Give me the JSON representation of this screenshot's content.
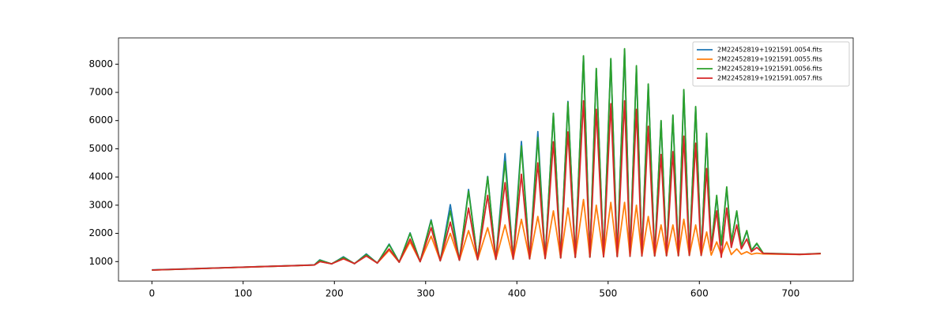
{
  "chart_data": {
    "type": "line",
    "x": [
      0,
      40,
      80,
      120,
      160,
      178,
      184,
      197,
      210,
      222,
      235,
      247,
      260,
      271,
      283,
      294,
      306,
      316,
      327,
      337,
      347,
      357,
      368,
      377,
      387,
      396,
      405,
      414,
      423,
      431,
      440,
      448,
      456,
      464,
      473,
      480,
      487,
      495,
      503,
      510,
      518,
      524,
      531,
      537,
      544,
      551,
      558,
      564,
      571,
      577,
      583,
      589,
      596,
      602,
      608,
      613,
      619,
      624,
      630,
      635,
      641,
      646,
      652,
      657,
      663,
      670,
      690,
      710,
      733
    ],
    "series": [
      {
        "name": "2M22452819+1921591.0054.fits",
        "color": "#1f77b4",
        "values": [
          705,
          745,
          785,
          825,
          865,
          885,
          1060,
          915,
          1170,
          925,
          1270,
          945,
          1620,
          975,
          2020,
          995,
          2480,
          1025,
          3020,
          1045,
          3560,
          1065,
          4020,
          1075,
          4830,
          1085,
          5260,
          1095,
          5610,
          1105,
          6260,
          1125,
          6680,
          1145,
          8280,
          1155,
          7820,
          1165,
          8180,
          1175,
          8520,
          1185,
          7900,
          1195,
          7280,
          1195,
          5980,
          1205,
          6180,
          1205,
          7080,
          1215,
          6480,
          1215,
          5520,
          1480,
          3300,
          1580,
          3600,
          1680,
          2780,
          1530,
          2080,
          1390,
          1630,
          1290,
          1270,
          1255,
          1285
        ]
      },
      {
        "name": "2M22452819+1921591.0055.fits",
        "color": "#ff7f0e",
        "values": [
          700,
          740,
          780,
          820,
          860,
          880,
          1000,
          920,
          1100,
          930,
          1200,
          950,
          1400,
          980,
          1700,
          1000,
          1900,
          1030,
          2000,
          1050,
          2100,
          1070,
          2200,
          1080,
          2300,
          1090,
          2500,
          1100,
          2600,
          1110,
          2800,
          1130,
          2900,
          1150,
          3200,
          1160,
          3000,
          1170,
          3100,
          1180,
          3100,
          1190,
          3000,
          1200,
          2600,
          1200,
          2300,
          1210,
          2300,
          1210,
          2500,
          1220,
          2300,
          1220,
          2050,
          1230,
          1700,
          1240,
          1700,
          1250,
          1450,
          1260,
          1350,
          1260,
          1300,
          1270,
          1260,
          1250,
          1280
        ]
      },
      {
        "name": "2M22452819+1921591.0056.fits",
        "color": "#2ca02c",
        "values": [
          700,
          740,
          780,
          820,
          860,
          880,
          1050,
          920,
          1150,
          930,
          1250,
          950,
          1600,
          980,
          2000,
          1000,
          2450,
          1030,
          2800,
          1050,
          3500,
          1070,
          4000,
          1080,
          4550,
          1090,
          5100,
          1100,
          5400,
          1110,
          6250,
          1130,
          6650,
          1150,
          8300,
          1160,
          7850,
          1170,
          8200,
          1180,
          8550,
          1190,
          7950,
          1200,
          7300,
          1200,
          6000,
          1210,
          6200,
          1210,
          7100,
          1220,
          6500,
          1220,
          5550,
          1500,
          3350,
          1600,
          3650,
          1700,
          2800,
          1550,
          2100,
          1400,
          1650,
          1300,
          1280,
          1260,
          1290
        ]
      },
      {
        "name": "2M22452819+1921591.0057.fits",
        "color": "#d62728",
        "values": [
          700,
          740,
          780,
          820,
          860,
          880,
          1000,
          920,
          1100,
          930,
          1200,
          950,
          1450,
          980,
          1800,
          1000,
          2200,
          1030,
          2400,
          1050,
          2900,
          1070,
          3350,
          1080,
          3800,
          1090,
          4100,
          1100,
          4500,
          1110,
          5250,
          1130,
          5600,
          1150,
          6700,
          1160,
          6400,
          1170,
          6600,
          1180,
          6700,
          1190,
          6400,
          1200,
          5800,
          1200,
          4800,
          1210,
          4900,
          1210,
          5450,
          1220,
          5200,
          1220,
          4300,
          1400,
          2800,
          1150,
          2900,
          1500,
          2300,
          1450,
          1800,
          1350,
          1500,
          1290,
          1270,
          1255,
          1285
        ]
      }
    ],
    "xlim": [
      -36.6,
      768.6
    ],
    "ylim": [
      308,
      8932
    ],
    "xticks": [
      0,
      100,
      200,
      300,
      400,
      500,
      600,
      700
    ],
    "yticks": [
      1000,
      2000,
      3000,
      4000,
      5000,
      6000,
      7000,
      8000
    ],
    "legend": "upper right"
  }
}
